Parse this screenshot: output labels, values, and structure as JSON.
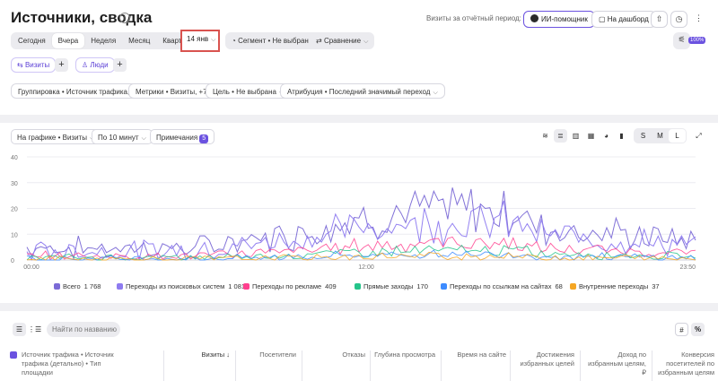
{
  "header": {
    "title": "Источники, сводка",
    "period_label": "Визиты за отчётный период: 1 768",
    "ai_button": "ИИ-помощник",
    "dashboard_button": "На дашборд"
  },
  "periods": [
    "Сегодня",
    "Вчера",
    "Неделя",
    "Месяц",
    "Квартал"
  ],
  "active_period": "Вчера",
  "date_value": "14 янв",
  "segment": "Сегмент • Не выбран",
  "compare": "Сравнение",
  "badge_100": "100%",
  "metric_buttons": {
    "visits": "Визиты",
    "people": "Люди"
  },
  "filters": {
    "grouping": "Группировка • Источник трафика, +2",
    "metrics": "Метрики • Визиты, +7",
    "goal": "Цель • Не выбрана",
    "attribution": "Атрибуция • Последний значимый переход"
  },
  "chart_controls": {
    "on_chart": "На графике • Визиты",
    "interval": "По 10 минут",
    "notes": "Примечания",
    "notes_count": "5",
    "sizes": [
      "S",
      "M",
      "L"
    ],
    "active_size": "L"
  },
  "chart_data": {
    "type": "line",
    "title": "",
    "y_ticks": [
      "40",
      "30",
      "20",
      "10",
      "0"
    ],
    "x_ticks": [
      "00:00",
      "12:00",
      "23:50"
    ],
    "ylim": [
      0,
      40
    ],
    "grid": true,
    "series": [
      {
        "name": "Всего",
        "color": "#7b6ad6",
        "total": "1 768"
      },
      {
        "name": "Переходы из поисковых систем",
        "color": "#8e7bf0",
        "total": "1 081"
      },
      {
        "name": "Переходы по рекламе",
        "color": "#ff3f8e",
        "total": "409"
      },
      {
        "name": "Прямые заходы",
        "color": "#25c48a",
        "total": "170"
      },
      {
        "name": "Переходы по ссылкам на сайтах",
        "color": "#3d8bff",
        "total": "68"
      },
      {
        "name": "Внутренние переходы",
        "color": "#f5a623",
        "total": "37"
      }
    ]
  },
  "table": {
    "search_placeholder": "Найти по названию",
    "hash": "#",
    "percent": "%",
    "col_dimension": "Источник трафика • Источник трафика (детально) • Тип площадки",
    "columns": [
      "Визиты ↓",
      "Посетители",
      "Отказы",
      "Глубина просмотра",
      "Время на сайте",
      "Достижения избранных целей",
      "Доход по избранным целям, ₽",
      "Конверсия посетителей по избранным целям"
    ]
  }
}
